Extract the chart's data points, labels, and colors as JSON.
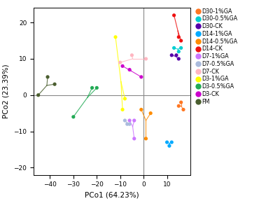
{
  "groups": {
    "D30-1%GA": {
      "color": "#FF7722",
      "points": [
        [
          15,
          -3
        ],
        [
          17,
          -4
        ],
        [
          16,
          -2
        ]
      ]
    },
    "D30-0.5%GA": {
      "color": "#00CED1",
      "points": [
        [
          13,
          13
        ],
        [
          15,
          12
        ],
        [
          16,
          13
        ]
      ]
    },
    "D30-CK": {
      "color": "#5500AA",
      "points": [
        [
          12,
          11
        ],
        [
          14,
          11
        ],
        [
          15,
          10
        ]
      ]
    },
    "D14-1%GA": {
      "color": "#00AAFF",
      "points": [
        [
          10,
          -13
        ],
        [
          11,
          -14
        ],
        [
          12,
          -13
        ]
      ]
    },
    "D14-0.5%GA": {
      "color": "#FF8C00",
      "points": [
        [
          -1,
          -4
        ],
        [
          1,
          -12
        ],
        [
          3,
          -5
        ]
      ]
    },
    "D14-CK": {
      "color": "#EE1111",
      "points": [
        [
          13,
          22
        ],
        [
          15,
          16
        ],
        [
          16,
          15
        ]
      ]
    },
    "D7-1%GA": {
      "color": "#CC77FF",
      "points": [
        [
          -6,
          -7
        ],
        [
          -4,
          -7
        ],
        [
          -4,
          -12
        ]
      ]
    },
    "D7-0.5%GA": {
      "color": "#AABBDD",
      "points": [
        [
          -8,
          -7
        ],
        [
          -7,
          -8
        ],
        [
          -6,
          -8
        ]
      ]
    },
    "D7-CK": {
      "color": "#FFB6C1",
      "points": [
        [
          -10,
          9
        ],
        [
          -5,
          11
        ],
        [
          1,
          10
        ]
      ]
    },
    "D3-1%GA": {
      "color": "#FFFF00",
      "points": [
        [
          -12,
          16
        ],
        [
          -9,
          -4
        ],
        [
          -8,
          -1
        ]
      ]
    },
    "D3-0.5%GA": {
      "color": "#22AA55",
      "points": [
        [
          -30,
          -6
        ],
        [
          -22,
          2
        ],
        [
          -20,
          2
        ]
      ]
    },
    "D3-CK": {
      "color": "#CC00CC",
      "points": [
        [
          -9,
          8
        ],
        [
          -6,
          7
        ],
        [
          -1,
          5
        ]
      ]
    },
    "FM": {
      "color": "#4A5E2F",
      "points": [
        [
          -45,
          0
        ],
        [
          -41,
          5
        ],
        [
          -38,
          3
        ]
      ]
    }
  },
  "xlabel": "PCo1 (64.23%)",
  "ylabel": "PCo2 (23.39%)",
  "xlim": [
    -47,
    20
  ],
  "ylim": [
    -22,
    24
  ],
  "xticks": [
    -40,
    -30,
    -20,
    -10,
    0,
    10
  ],
  "yticks": [
    -20,
    -10,
    0,
    10,
    20
  ],
  "axline_color": "#888888",
  "bg_color": "#FFFFFF",
  "legend_order": [
    "D30-1%GA",
    "D30-0.5%GA",
    "D30-CK",
    "D14-1%GA",
    "D14-0.5%GA",
    "D14-CK",
    "D7-1%GA",
    "D7-0.5%GA",
    "D7-CK",
    "D3-1%GA",
    "D3-0.5%GA",
    "D3-CK",
    "FM"
  ]
}
